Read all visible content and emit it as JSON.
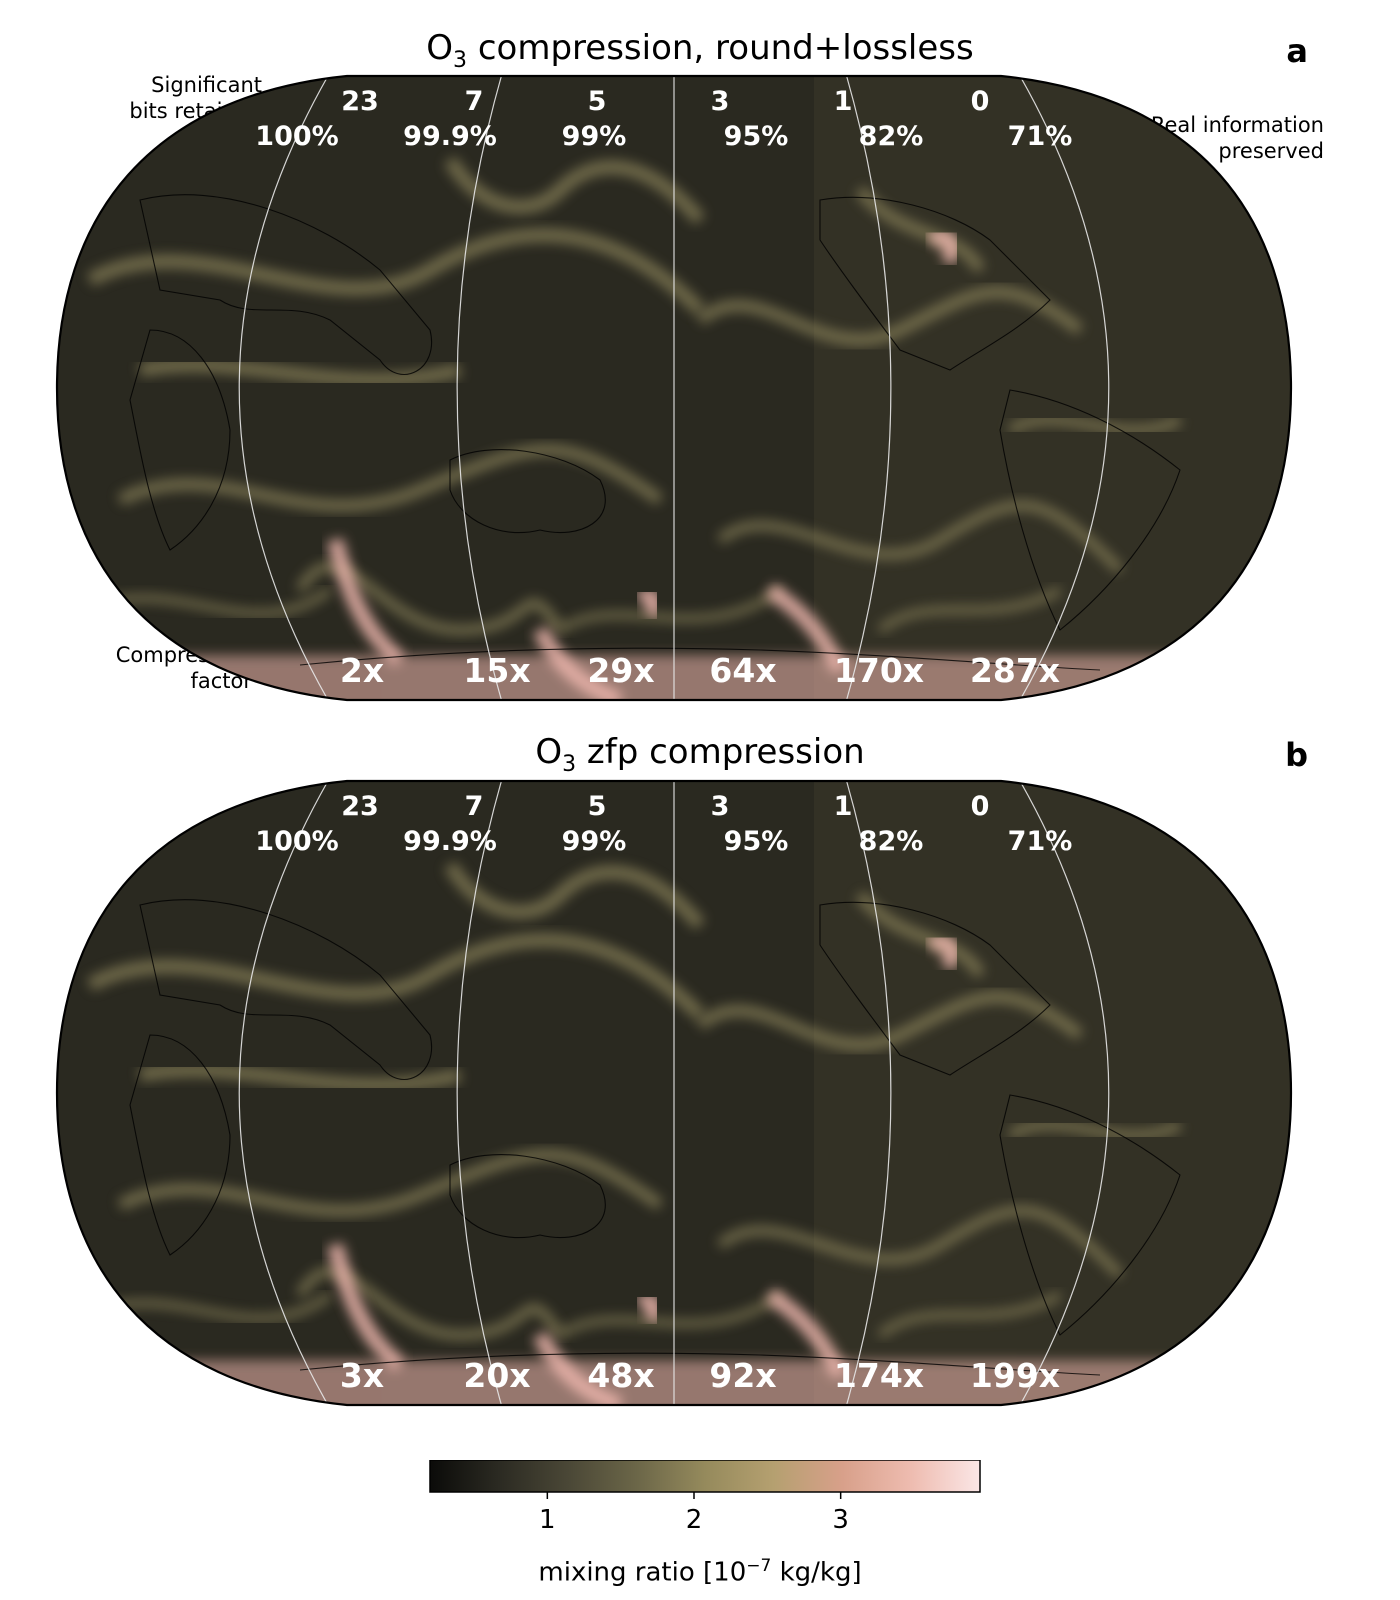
{
  "panels": [
    {
      "id": "a",
      "title_main": "O",
      "title_sub": "3",
      "title_rest": " compression, round+lossless",
      "letter": "a",
      "bits_row": [
        "23",
        "7",
        "5",
        "3",
        "1",
        "0"
      ],
      "info_row": [
        "100%",
        "99.9%",
        "99%",
        "95%",
        "82%",
        "71%"
      ],
      "factor_row": [
        "2x",
        "15x",
        "29x",
        "64x",
        "170x",
        "287x"
      ]
    },
    {
      "id": "b",
      "title_main": "O",
      "title_sub": "3",
      "title_rest": " zfp compression",
      "letter": "b",
      "bits_row": [
        "23",
        "7",
        "5",
        "3",
        "1",
        "0"
      ],
      "info_row": [
        "100%",
        "99.9%",
        "99%",
        "95%",
        "82%",
        "71%"
      ],
      "factor_row": [
        "3x",
        "20x",
        "48x",
        "92x",
        "174x",
        "199x"
      ]
    }
  ],
  "annotations": {
    "significant_bits": "Significant\nbits retained",
    "real_information": "Real information\npreserved",
    "compression_factor": "Compression\nfactor"
  },
  "colorbar": {
    "ticks": [
      "1",
      "2",
      "3"
    ],
    "tick_values": [
      1,
      2,
      3
    ],
    "range": [
      0.2,
      3.95
    ],
    "label_main": "mixing ratio [10",
    "label_exp": "−7",
    "label_unit": " kg/kg]",
    "colormap": [
      "#0b0b09",
      "#2b2a22",
      "#4a4736",
      "#6b6648",
      "#958a5c",
      "#b5a070",
      "#d8a08a",
      "#eebcb0",
      "#fbe6e6"
    ]
  },
  "colors": {
    "ocean_dark": "#2a2920",
    "land_mid": "#3a3829",
    "filament": "#a89e6c",
    "filament_light": "#efb7ae",
    "gridline": "#e8e8e8"
  }
}
